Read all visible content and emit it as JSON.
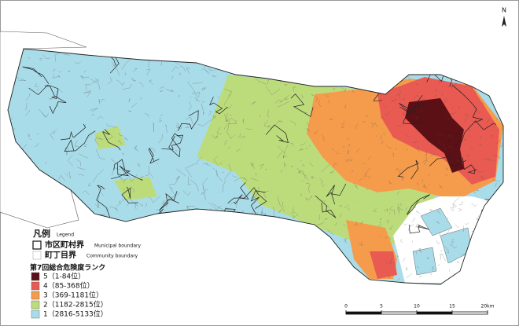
{
  "north_label": "N",
  "legend": {
    "title": "凡例",
    "subtitle": "Legend",
    "boundaries": [
      {
        "label": "市区町村界",
        "english": "Municipal boundary"
      },
      {
        "label": "町丁目界",
        "english": "Community boundary"
      }
    ]
  },
  "rank_legend": {
    "title": "第7回総合危険度ランク",
    "items": [
      {
        "label": "5（1-84位）",
        "color": "#5b1016"
      },
      {
        "label": "4（85-368位）",
        "color": "#e85a52"
      },
      {
        "label": "3（369-1181位）",
        "color": "#f59b4c"
      },
      {
        "label": "2（1182-2815位）",
        "color": "#bcdc7c"
      },
      {
        "label": "1（2816-5133位）",
        "color": "#a9dce9"
      }
    ]
  },
  "scale_bar": {
    "labels": [
      "0",
      "5",
      "10",
      "15",
      "20km"
    ]
  }
}
